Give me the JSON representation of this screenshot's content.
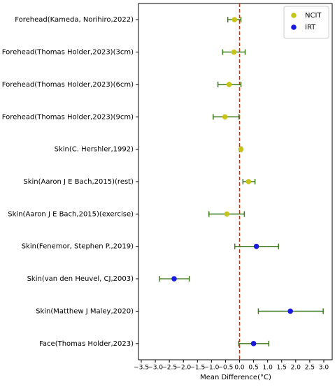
{
  "chart_data": {
    "type": "forest",
    "xlabel": "Mean Difference(°C)",
    "categories": [
      "Forehead(Kameda, Norihiro,2022)",
      "Forehead(Thomas Holder,2023)(3cm)",
      "Forehead(Thomas Holder,2023)(6cm)",
      "Forehead(Thomas Holder,2023)(9cm)",
      "Skin(C. Hershler,1992)",
      "Skin(Aaron J E Bach,2015)(rest)",
      "Skin(Aaron J E Bach,2015)(exercise)",
      "Skin(Fenemor, Stephen P.,2019)",
      "Skin(van den Heuvel, CJ,2003)",
      "Skin(Matthew J Maley,2020)",
      "Face(Thomas Holder,2023)"
    ],
    "series": [
      {
        "name": "NCIT",
        "color": "#c4c41a",
        "values": [
          -0.18,
          -0.2,
          -0.37,
          -0.52,
          0.05,
          0.32,
          -0.45,
          null,
          null,
          null,
          null
        ],
        "lower": [
          -0.42,
          -0.6,
          -0.77,
          -0.94,
          0.02,
          0.12,
          -1.09,
          null,
          null,
          null,
          null
        ],
        "upper": [
          0.05,
          0.2,
          0.05,
          -0.02,
          0.08,
          0.55,
          0.17,
          null,
          null,
          null,
          null
        ]
      },
      {
        "name": "IRT",
        "color": "#1a1ae0",
        "values": [
          null,
          null,
          null,
          null,
          null,
          null,
          null,
          0.6,
          -2.33,
          1.81,
          0.5
        ],
        "lower": [
          null,
          null,
          null,
          null,
          null,
          null,
          null,
          -0.17,
          -2.85,
          0.67,
          -0.03
        ],
        "upper": [
          null,
          null,
          null,
          null,
          null,
          null,
          null,
          1.39,
          -1.79,
          2.98,
          1.04
        ]
      }
    ],
    "error_color": "#3f7a1f",
    "reference_line": 0,
    "reference_color": "#a83a1e",
    "xlim": [
      -3.6,
      3.3
    ],
    "xticks": [
      {
        "value": -3.5,
        "label": "−3.5"
      },
      {
        "value": -3.0,
        "label": "−3.0"
      },
      {
        "value": -2.5,
        "label": "−2.5"
      },
      {
        "value": -2.0,
        "label": "−2.0"
      },
      {
        "value": -1.5,
        "label": "−1.5"
      },
      {
        "value": -1.0,
        "label": "−1.0"
      },
      {
        "value": -0.5,
        "label": "−0.5"
      },
      {
        "value": 0,
        "label": "0.0"
      },
      {
        "value": 0.5,
        "label": "0.5"
      },
      {
        "value": 1.0,
        "label": "1.0"
      },
      {
        "value": 1.5,
        "label": "1.5"
      },
      {
        "value": 2.0,
        "label": "2.0"
      },
      {
        "value": 2.5,
        "label": "2.5"
      },
      {
        "value": 3.0,
        "label": "3.0"
      }
    ],
    "legend": "upper right"
  }
}
